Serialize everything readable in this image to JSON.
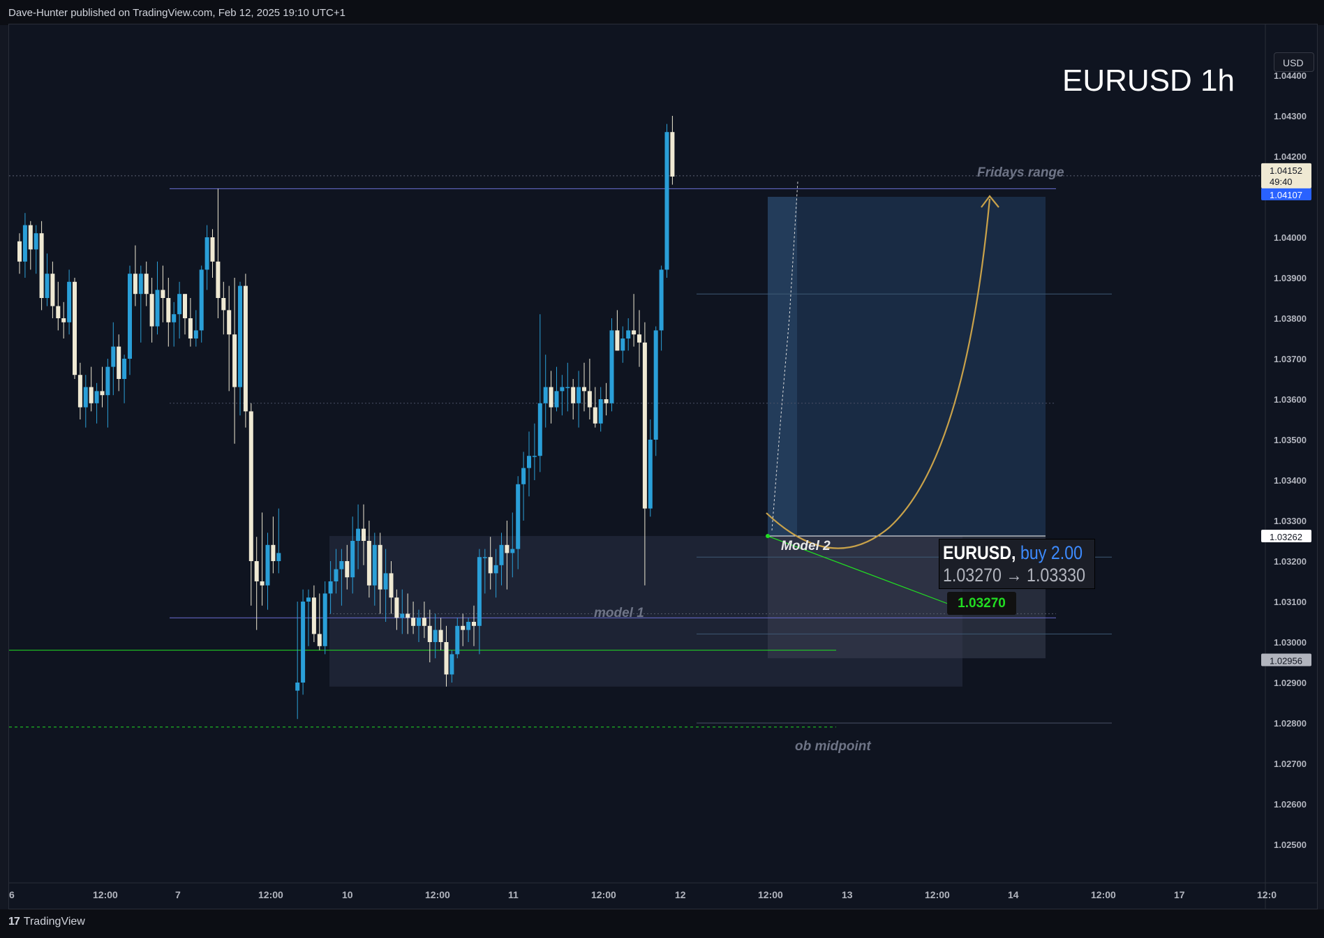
{
  "header": {
    "published": "Dave-Hunter published on TradingView.com, Feb 12, 2025 19:10 UTC+1"
  },
  "footer": {
    "brand": "TradingView",
    "logo": "17"
  },
  "symbol_title": "EURUSD 1h",
  "currency_button": "USD",
  "annotations": {
    "fridays_range": "Fridays range",
    "model_1": "model 1",
    "model_2": "Model 2",
    "ob_midpoint": "ob midpoint"
  },
  "trade": {
    "symbol": "EURUSD,",
    "side": "buy 2.00",
    "route": "1.03270 → 1.03330",
    "entry_tag": "1.03270"
  },
  "price_tags": {
    "current": "1.04152",
    "countdown": "49:40",
    "hidden_under": "1.04107",
    "level_a": "1.03262",
    "level_b": "1.02956"
  },
  "colors": {
    "bull": "#2a9fd8",
    "bear": "#efe9d3",
    "curve": "#c9a24a",
    "green_level": "#22dd22"
  },
  "chart_data": {
    "type": "candlestick",
    "title": "EURUSD 1h",
    "y_axis": {
      "min": 1.0242,
      "max": 1.0446,
      "ticks": [
        "1.04400",
        "1.04300",
        "1.04200",
        "1.04000",
        "1.03900",
        "1.03800",
        "1.03700",
        "1.03600",
        "1.03500",
        "1.03400",
        "1.03300",
        "1.03200",
        "1.03100",
        "1.03000",
        "1.02900",
        "1.02800",
        "1.02700",
        "1.02600",
        "1.02500"
      ]
    },
    "x_axis": {
      "ticks": [
        "6",
        "12:00",
        "7",
        "12:00",
        "10",
        "12:00",
        "11",
        "12:00",
        "12",
        "12:00",
        "13",
        "12:00",
        "14",
        "12:00",
        "17",
        "12:0"
      ]
    },
    "levels": [
      {
        "name": "fridays range high",
        "value": 1.0412
      },
      {
        "name": "dotted level",
        "value": 1.0359
      },
      {
        "name": "model 1 low line",
        "value": 1.0306
      },
      {
        "name": "green level",
        "value": 1.0298
      },
      {
        "name": "green dashed ob midpoint",
        "value": 1.0279
      },
      {
        "name": "box line top",
        "value": 1.0386
      },
      {
        "name": "box line mid",
        "value": 1.0321
      },
      {
        "name": "box line low",
        "value": 1.0302
      },
      {
        "name": "box line bottom",
        "value": 1.028
      },
      {
        "name": "position entry",
        "value": 1.03262
      }
    ],
    "candles": [
      [
        1.0399,
        1.0401,
        1.0391,
        1.0394
      ],
      [
        1.0394,
        1.0406,
        1.039,
        1.0403
      ],
      [
        1.0403,
        1.0404,
        1.0392,
        1.0397
      ],
      [
        1.0397,
        1.0403,
        1.0391,
        1.0401
      ],
      [
        1.0401,
        1.0404,
        1.0382,
        1.0385
      ],
      [
        1.0385,
        1.0396,
        1.0383,
        1.0391
      ],
      [
        1.0391,
        1.0394,
        1.038,
        1.0383
      ],
      [
        1.0383,
        1.0389,
        1.0377,
        1.038
      ],
      [
        1.038,
        1.0384,
        1.0375,
        1.0379
      ],
      [
        1.0379,
        1.0392,
        1.0376,
        1.0389
      ],
      [
        1.0389,
        1.039,
        1.0365,
        1.0366
      ],
      [
        1.0366,
        1.0369,
        1.0355,
        1.0358
      ],
      [
        1.0358,
        1.0366,
        1.0353,
        1.0363
      ],
      [
        1.0363,
        1.0368,
        1.0357,
        1.0359
      ],
      [
        1.0359,
        1.0364,
        1.0354,
        1.0362
      ],
      [
        1.0362,
        1.0368,
        1.0358,
        1.0361
      ],
      [
        1.0361,
        1.037,
        1.0353,
        1.0368
      ],
      [
        1.0368,
        1.0379,
        1.0361,
        1.0373
      ],
      [
        1.0373,
        1.0376,
        1.0362,
        1.0365
      ],
      [
        1.0365,
        1.0371,
        1.0359,
        1.037
      ],
      [
        1.037,
        1.0393,
        1.0366,
        1.0391
      ],
      [
        1.0391,
        1.0398,
        1.0383,
        1.0386
      ],
      [
        1.0386,
        1.0393,
        1.0374,
        1.0391
      ],
      [
        1.0391,
        1.0394,
        1.0383,
        1.0386
      ],
      [
        1.0386,
        1.039,
        1.0374,
        1.0378
      ],
      [
        1.0378,
        1.0394,
        1.0376,
        1.0387
      ],
      [
        1.0387,
        1.0393,
        1.0379,
        1.0385
      ],
      [
        1.0385,
        1.039,
        1.0373,
        1.0379
      ],
      [
        1.0379,
        1.0384,
        1.0373,
        1.0381
      ],
      [
        1.0381,
        1.0389,
        1.0375,
        1.0386
      ],
      [
        1.0386,
        1.0386,
        1.0376,
        1.038
      ],
      [
        1.038,
        1.0385,
        1.0373,
        1.0375
      ],
      [
        1.0375,
        1.0382,
        1.0373,
        1.0377
      ],
      [
        1.0377,
        1.0393,
        1.0374,
        1.0392
      ],
      [
        1.0392,
        1.0403,
        1.0387,
        1.04
      ],
      [
        1.04,
        1.0402,
        1.039,
        1.0394
      ],
      [
        1.0394,
        1.0412,
        1.038,
        1.0385
      ],
      [
        1.0385,
        1.0389,
        1.0376,
        1.0382
      ],
      [
        1.0382,
        1.0388,
        1.0362,
        1.0376
      ],
      [
        1.0376,
        1.039,
        1.0349,
        1.0363
      ],
      [
        1.0363,
        1.0389,
        1.0356,
        1.0388
      ],
      [
        1.0388,
        1.0391,
        1.0353,
        1.0357
      ],
      [
        1.0357,
        1.0359,
        1.0309,
        1.032
      ],
      [
        1.032,
        1.0326,
        1.0303,
        1.0315
      ],
      [
        1.0315,
        1.0332,
        1.0309,
        1.0314
      ],
      [
        1.0314,
        1.0327,
        1.0308,
        1.0324
      ],
      [
        1.0324,
        1.0331,
        1.0317,
        1.032
      ],
      [
        1.032,
        1.0333,
        1.0317,
        1.0322
      ],
      [
        1.0288,
        1.031,
        1.0281,
        1.029
      ],
      [
        1.029,
        1.0313,
        1.0287,
        1.031
      ],
      [
        1.031,
        1.0313,
        1.0299,
        1.0311
      ],
      [
        1.0311,
        1.0314,
        1.03,
        1.0302
      ],
      [
        1.0302,
        1.0312,
        1.0298,
        1.0299
      ],
      [
        1.0299,
        1.0315,
        1.0297,
        1.0312
      ],
      [
        1.0312,
        1.032,
        1.0307,
        1.0315
      ],
      [
        1.0315,
        1.0323,
        1.0312,
        1.0318
      ],
      [
        1.0318,
        1.0323,
        1.0309,
        1.032
      ],
      [
        1.032,
        1.0324,
        1.0313,
        1.0316
      ],
      [
        1.0316,
        1.0331,
        1.0312,
        1.0325
      ],
      [
        1.0325,
        1.0334,
        1.0318,
        1.0328
      ],
      [
        1.0328,
        1.0334,
        1.0319,
        1.0325
      ],
      [
        1.0325,
        1.033,
        1.0311,
        1.0314
      ],
      [
        1.0314,
        1.0327,
        1.0309,
        1.0324
      ],
      [
        1.0324,
        1.0327,
        1.0307,
        1.0313
      ],
      [
        1.0313,
        1.0323,
        1.0305,
        1.0317
      ],
      [
        1.0317,
        1.032,
        1.0307,
        1.0311
      ],
      [
        1.0311,
        1.0313,
        1.0303,
        1.0306
      ],
      [
        1.0306,
        1.0313,
        1.0302,
        1.0307
      ],
      [
        1.0307,
        1.0312,
        1.0302,
        1.0306
      ],
      [
        1.0306,
        1.031,
        1.0302,
        1.0304
      ],
      [
        1.0304,
        1.0308,
        1.03,
        1.0306
      ],
      [
        1.0306,
        1.031,
        1.0301,
        1.0304
      ],
      [
        1.0304,
        1.0308,
        1.0295,
        1.03
      ],
      [
        1.03,
        1.0307,
        1.0296,
        1.0303
      ],
      [
        1.0303,
        1.0306,
        1.0298,
        1.03
      ],
      [
        1.03,
        1.0304,
        1.0289,
        1.0292
      ],
      [
        1.0292,
        1.0298,
        1.029,
        1.0297
      ],
      [
        1.0297,
        1.0306,
        1.0296,
        1.0304
      ],
      [
        1.0304,
        1.0307,
        1.0299,
        1.0303
      ],
      [
        1.0303,
        1.0306,
        1.03,
        1.0305
      ],
      [
        1.0305,
        1.0309,
        1.0299,
        1.0304
      ],
      [
        1.0304,
        1.0323,
        1.0297,
        1.0321
      ],
      [
        1.0321,
        1.0323,
        1.0312,
        1.0321
      ],
      [
        1.0321,
        1.0326,
        1.0313,
        1.0317
      ],
      [
        1.0317,
        1.0323,
        1.0311,
        1.0319
      ],
      [
        1.0319,
        1.0327,
        1.0314,
        1.0324
      ],
      [
        1.0324,
        1.033,
        1.0313,
        1.0322
      ],
      [
        1.0322,
        1.0332,
        1.0316,
        1.0323
      ],
      [
        1.0323,
        1.0341,
        1.0318,
        1.0339
      ],
      [
        1.0339,
        1.0347,
        1.033,
        1.0343
      ],
      [
        1.0343,
        1.0352,
        1.0336,
        1.0346
      ],
      [
        1.0346,
        1.0354,
        1.034,
        1.0346
      ],
      [
        1.0346,
        1.0381,
        1.0342,
        1.0359
      ],
      [
        1.0359,
        1.0371,
        1.0353,
        1.0363
      ],
      [
        1.0363,
        1.0367,
        1.0354,
        1.0358
      ],
      [
        1.0358,
        1.0368,
        1.0357,
        1.0362
      ],
      [
        1.0362,
        1.0366,
        1.0356,
        1.0363
      ],
      [
        1.0363,
        1.0369,
        1.0357,
        1.0363
      ],
      [
        1.0363,
        1.0365,
        1.0355,
        1.0359
      ],
      [
        1.0359,
        1.0367,
        1.0353,
        1.0363
      ],
      [
        1.0363,
        1.0369,
        1.0357,
        1.0362
      ],
      [
        1.0362,
        1.037,
        1.0355,
        1.0358
      ],
      [
        1.0358,
        1.0363,
        1.0353,
        1.0354
      ],
      [
        1.0354,
        1.0363,
        1.0352,
        1.036
      ],
      [
        1.036,
        1.0364,
        1.0356,
        1.0359
      ],
      [
        1.0359,
        1.038,
        1.0357,
        1.0377
      ],
      [
        1.0377,
        1.0382,
        1.0372,
        1.0372
      ],
      [
        1.0372,
        1.0378,
        1.0369,
        1.0375
      ],
      [
        1.0375,
        1.038,
        1.0372,
        1.0377
      ],
      [
        1.0377,
        1.0386,
        1.0373,
        1.0376
      ],
      [
        1.0376,
        1.0382,
        1.0368,
        1.0374
      ],
      [
        1.0374,
        1.0379,
        1.0314,
        1.0333
      ],
      [
        1.0333,
        1.0355,
        1.0331,
        1.035
      ],
      [
        1.035,
        1.0378,
        1.0346,
        1.0377
      ],
      [
        1.0377,
        1.0393,
        1.0372,
        1.0392
      ],
      [
        1.0392,
        1.0428,
        1.039,
        1.0426
      ],
      [
        1.0426,
        1.043,
        1.0413,
        1.0415
      ]
    ]
  }
}
